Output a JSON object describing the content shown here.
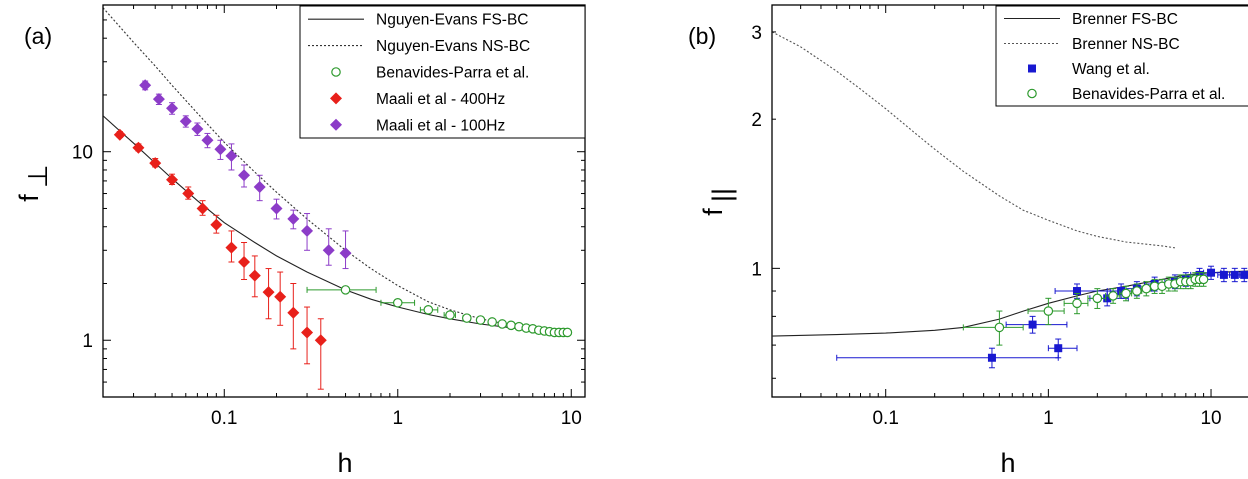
{
  "chart_data": [
    {
      "type": "scatter",
      "panel_label": "(a)",
      "xlabel": "h",
      "ylabel": "f",
      "ylabel_subscript": "⊥",
      "x_scale": "log",
      "y_scale": "log",
      "xlim": [
        0.02,
        12
      ],
      "ylim": [
        0.5,
        60
      ],
      "x_ticks": [
        {
          "value": 0.1,
          "label": "0.1"
        },
        {
          "value": 1,
          "label": "1"
        },
        {
          "value": 10,
          "label": "10"
        }
      ],
      "y_ticks": [
        {
          "value": 1,
          "label": "1"
        },
        {
          "value": 10,
          "label": "10"
        }
      ],
      "legend_position": "top-right",
      "series": [
        {
          "name": "Nguyen-Evans FS-BC",
          "kind": "line",
          "style": "solid",
          "color": "#222222",
          "x": [
            0.02,
            0.025,
            0.03,
            0.04,
            0.05,
            0.07,
            0.1,
            0.15,
            0.2,
            0.3,
            0.5,
            0.7,
            1,
            1.5,
            2,
            3,
            5,
            7,
            10
          ],
          "y": [
            15.5,
            12.9,
            11.1,
            8.7,
            7.2,
            5.5,
            4.2,
            3.3,
            2.8,
            2.3,
            1.85,
            1.65,
            1.5,
            1.37,
            1.3,
            1.22,
            1.15,
            1.12,
            1.1
          ]
        },
        {
          "name": "Nguyen-Evans NS-BC",
          "kind": "line",
          "style": "dotted",
          "color": "#333333",
          "x": [
            0.02,
            0.025,
            0.03,
            0.04,
            0.05,
            0.07,
            0.1,
            0.15,
            0.2,
            0.3,
            0.5,
            0.7,
            1,
            1.5,
            2,
            3,
            5,
            7,
            10
          ],
          "y": [
            58,
            46,
            38,
            28.5,
            22.5,
            16,
            11.2,
            7.8,
            6.1,
            4.4,
            3.0,
            2.4,
            1.95,
            1.6,
            1.45,
            1.3,
            1.18,
            1.14,
            1.1
          ]
        },
        {
          "name": "Benavides-Parra et al.",
          "kind": "points",
          "marker": "circle-open",
          "color": "#2e9a2e",
          "x": [
            0.5,
            1.0,
            1.5,
            2.0,
            2.5,
            3.0,
            3.5,
            4.0,
            4.5,
            5.0,
            5.5,
            6.0,
            6.5,
            7.0,
            7.5,
            8.0,
            8.5,
            9.0,
            9.5
          ],
          "y": [
            1.85,
            1.58,
            1.45,
            1.36,
            1.31,
            1.28,
            1.25,
            1.22,
            1.2,
            1.18,
            1.16,
            1.15,
            1.13,
            1.12,
            1.11,
            1.1,
            1.1,
            1.1,
            1.1
          ],
          "xerr_low": [
            0.2,
            0.2,
            0.15,
            0.15,
            0.12,
            0.12,
            0.1,
            0.1,
            0.1,
            0.1,
            0.1,
            0.1,
            0.1,
            0.1,
            0.1,
            0.1,
            0.1,
            0.1,
            0.1
          ],
          "xerr_high": [
            0.25,
            0.25,
            0.2,
            0.15,
            0.12,
            0.12,
            0.1,
            0.1,
            0.1,
            0.1,
            0.1,
            0.1,
            0.1,
            0.1,
            0.1,
            0.1,
            0.1,
            0.1,
            0.1
          ]
        },
        {
          "name": "Maali et al - 400Hz",
          "kind": "points",
          "marker": "diamond-filled",
          "color": "#e8201a",
          "x": [
            0.025,
            0.032,
            0.04,
            0.05,
            0.062,
            0.075,
            0.09,
            0.11,
            0.13,
            0.15,
            0.18,
            0.21,
            0.25,
            0.3,
            0.36
          ],
          "y": [
            12.3,
            10.5,
            8.7,
            7.1,
            6.0,
            5.0,
            4.1,
            3.1,
            2.6,
            2.2,
            1.8,
            1.7,
            1.4,
            1.1,
            1.0
          ],
          "yerr_low": [
            0.4,
            0.4,
            0.4,
            0.4,
            0.4,
            0.4,
            0.4,
            0.5,
            0.5,
            0.5,
            0.5,
            0.5,
            0.5,
            0.35,
            0.45
          ],
          "yerr_high": [
            0.5,
            0.5,
            0.5,
            0.5,
            0.5,
            0.5,
            0.5,
            0.7,
            0.7,
            0.6,
            0.6,
            0.6,
            0.6,
            0.4,
            0.3
          ]
        },
        {
          "name": "Maali et al - 100Hz",
          "kind": "points",
          "marker": "diamond-filled",
          "color": "#8c3cc8",
          "x": [
            0.035,
            0.042,
            0.05,
            0.06,
            0.07,
            0.08,
            0.095,
            0.11,
            0.13,
            0.16,
            0.2,
            0.25,
            0.3,
            0.4,
            0.5
          ],
          "y": [
            22.5,
            19.0,
            17.0,
            14.5,
            13.2,
            11.5,
            10.3,
            9.5,
            7.5,
            6.5,
            5.0,
            4.4,
            3.8,
            3.0,
            2.9
          ],
          "yerr_low": [
            1.2,
            1.2,
            1.2,
            1.0,
            1.0,
            1.0,
            1.2,
            1.5,
            1.0,
            1.0,
            0.6,
            0.5,
            0.8,
            0.5,
            0.5
          ],
          "yerr_high": [
            1.2,
            1.2,
            1.2,
            1.0,
            1.0,
            1.0,
            1.2,
            1.5,
            1.0,
            1.0,
            0.6,
            0.5,
            0.9,
            0.9,
            0.9
          ]
        }
      ]
    },
    {
      "type": "scatter",
      "panel_label": "(b)",
      "xlabel": "h",
      "ylabel": "f",
      "ylabel_subscript": "||",
      "x_scale": "log",
      "y_scale": "log",
      "xlim": [
        0.02,
        20
      ],
      "ylim": [
        0.55,
        3.4
      ],
      "x_ticks": [
        {
          "value": 0.1,
          "label": "0.1"
        },
        {
          "value": 1,
          "label": "1"
        },
        {
          "value": 10,
          "label": "10"
        }
      ],
      "y_ticks": [
        {
          "value": 1,
          "label": "1"
        },
        {
          "value": 2,
          "label": "2"
        },
        {
          "value": 3,
          "label": "3"
        }
      ],
      "legend_position": "top-right",
      "series": [
        {
          "name": "Brenner FS-BC",
          "kind": "line",
          "style": "solid",
          "color": "#222222",
          "x": [
            0.02,
            0.05,
            0.1,
            0.2,
            0.3,
            0.5,
            0.7,
            1,
            1.5,
            2,
            3,
            5,
            7,
            10,
            20
          ],
          "y": [
            0.73,
            0.735,
            0.74,
            0.75,
            0.76,
            0.79,
            0.82,
            0.85,
            0.88,
            0.9,
            0.92,
            0.95,
            0.97,
            0.98,
            0.99
          ]
        },
        {
          "name": "Brenner NS-BC",
          "kind": "line",
          "style": "dotted",
          "color": "#555555",
          "x": [
            0.02,
            0.03,
            0.05,
            0.07,
            0.1,
            0.15,
            0.2,
            0.3,
            0.5,
            0.7,
            1,
            1.5,
            2,
            3,
            5,
            6
          ],
          "y": [
            3.0,
            2.8,
            2.5,
            2.3,
            2.1,
            1.88,
            1.74,
            1.57,
            1.4,
            1.31,
            1.25,
            1.19,
            1.16,
            1.13,
            1.11,
            1.1
          ]
        },
        {
          "name": "Wang et al.",
          "kind": "points",
          "marker": "square-filled",
          "color": "#1818d0",
          "x": [
            0.45,
            0.8,
            1.15,
            1.5,
            2.3,
            2.8,
            3.5,
            4.5,
            6,
            7,
            8.5,
            10,
            12,
            14,
            16,
            18,
            20
          ],
          "y": [
            0.66,
            0.77,
            0.69,
            0.9,
            0.87,
            0.9,
            0.91,
            0.93,
            0.94,
            0.95,
            0.97,
            0.98,
            0.97,
            0.97,
            0.97,
            0.97,
            0.97
          ],
          "xerr_low": [
            0.4,
            0.25,
            0.15,
            0.4,
            0.5,
            0.4,
            0.5,
            0.6,
            0.8,
            0.8,
            1.0,
            1.0,
            1.0,
            1.0,
            1.0,
            1.0,
            1.0
          ],
          "xerr_high": [
            0.7,
            0.5,
            0.35,
            0.8,
            0.8,
            0.7,
            0.8,
            1.0,
            1.2,
            1.2,
            1.5,
            1.5,
            1.5,
            1.5,
            1.5,
            1.5,
            1.5
          ],
          "yerr": [
            0.03,
            0.03,
            0.03,
            0.03,
            0.03,
            0.03,
            0.03,
            0.03,
            0.03,
            0.03,
            0.03,
            0.03,
            0.03,
            0.03,
            0.03,
            0.03,
            0.03
          ]
        },
        {
          "name": "Benavides-Parra et al.",
          "kind": "points",
          "marker": "circle-open",
          "color": "#2e9a2e",
          "x": [
            0.5,
            1.0,
            1.5,
            2.0,
            2.5,
            3.0,
            3.5,
            4.0,
            4.5,
            5.0,
            5.5,
            6.0,
            6.5,
            7.0,
            7.5,
            8.0,
            8.5,
            9.0
          ],
          "y": [
            0.76,
            0.82,
            0.85,
            0.87,
            0.88,
            0.89,
            0.9,
            0.91,
            0.92,
            0.92,
            0.93,
            0.93,
            0.94,
            0.94,
            0.94,
            0.95,
            0.95,
            0.95
          ],
          "xerr": [
            0.2,
            0.25,
            0.25,
            0.25,
            0.25,
            0.25,
            0.25,
            0.25,
            0.25,
            0.25,
            0.25,
            0.25,
            0.25,
            0.25,
            0.25,
            0.25,
            0.25,
            0.25
          ],
          "yerr": [
            0.06,
            0.05,
            0.04,
            0.04,
            0.03,
            0.03,
            0.03,
            0.03,
            0.03,
            0.03,
            0.03,
            0.03,
            0.03,
            0.03,
            0.03,
            0.03,
            0.03,
            0.03
          ]
        }
      ]
    }
  ]
}
